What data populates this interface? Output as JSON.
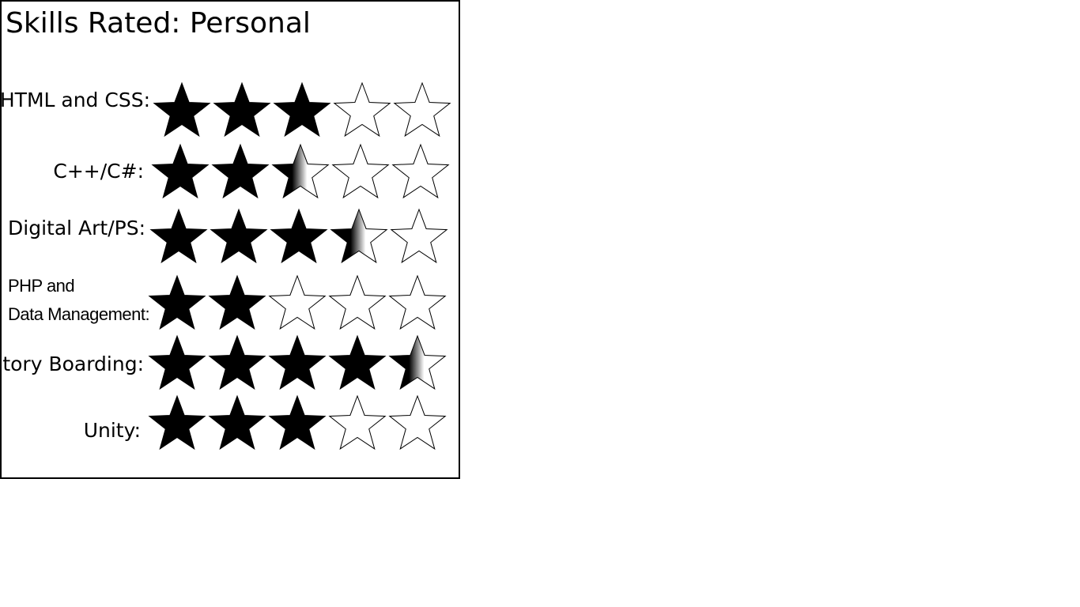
{
  "title": "Skills Rated: Personal",
  "max_rating": 5,
  "star_fill_color": "#000000",
  "star_empty_color": "#ffffff",
  "skills": [
    {
      "label": "HTML and CSS:",
      "rating": 3
    },
    {
      "label": "C++/C#:",
      "rating": 2.5
    },
    {
      "label": "Digital Art/PS:",
      "rating": 3.5
    },
    {
      "label_lines": [
        "PHP and",
        "Data Management:"
      ],
      "rating": 2
    },
    {
      "label": "Story Boarding:",
      "rating": 4.5
    },
    {
      "label": "Unity:",
      "rating": 3
    }
  ]
}
